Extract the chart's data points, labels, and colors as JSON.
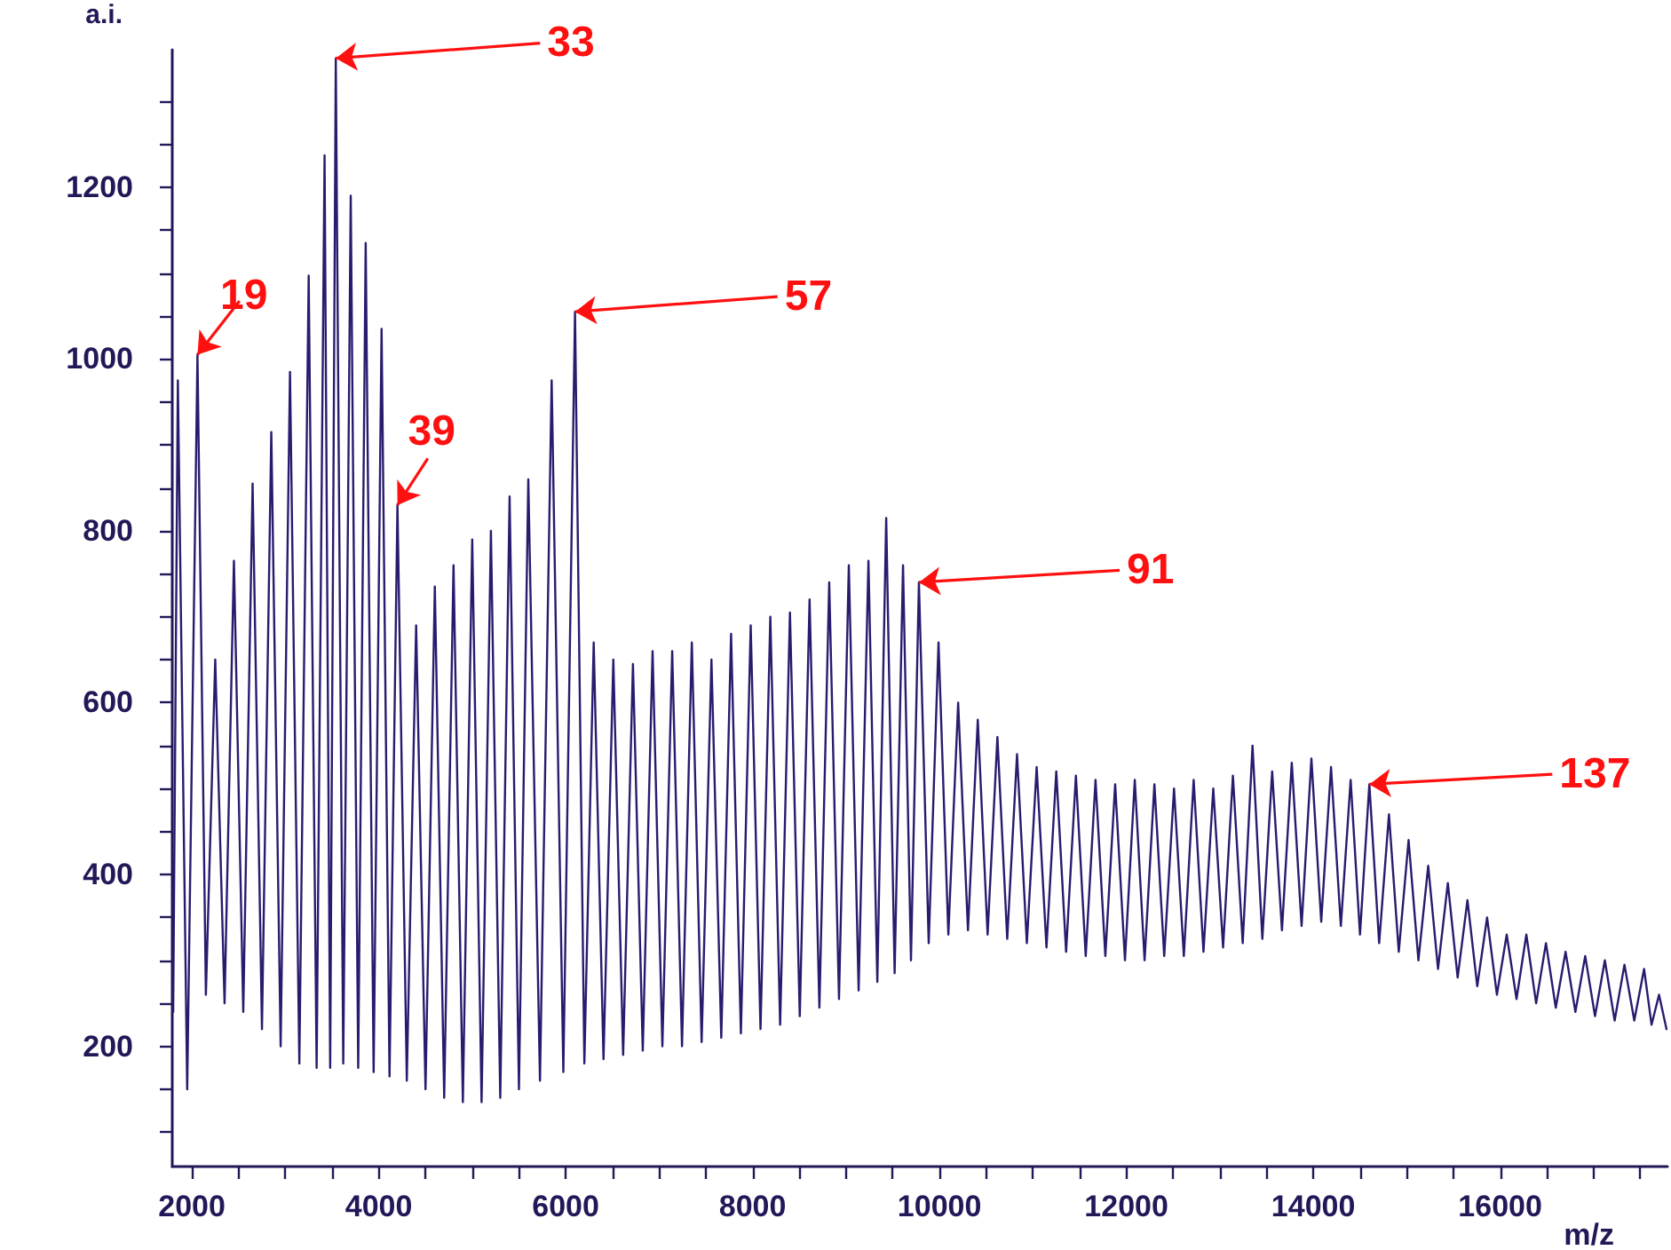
{
  "chart_data": {
    "type": "line",
    "xlabel": "m/z",
    "ylabel": "a.i.",
    "xlim": [
      1790,
      17790
    ],
    "ylim": [
      60,
      1360
    ],
    "xticks": [
      2000,
      {
        "value": 2500,
        "label": null
      },
      {
        "value": 3000,
        "label": null
      },
      {
        "value": 3500,
        "label": null
      },
      4000,
      {
        "value": 4500,
        "label": null
      },
      {
        "value": 5000,
        "label": null
      },
      {
        "value": 5500,
        "label": null
      },
      6000,
      {
        "value": 6500,
        "label": null
      },
      {
        "value": 7000,
        "label": null
      },
      {
        "value": 7500,
        "label": null
      },
      8000,
      {
        "value": 8500,
        "label": null
      },
      {
        "value": 9000,
        "label": null
      },
      {
        "value": 9500,
        "label": null
      },
      10000,
      {
        "value": 10500,
        "label": null
      },
      {
        "value": 11000,
        "label": null
      },
      {
        "value": 11500,
        "label": null
      },
      12000,
      {
        "value": 12500,
        "label": null
      },
      {
        "value": 13000,
        "label": null
      },
      {
        "value": 13500,
        "label": null
      },
      14000,
      {
        "value": 14500,
        "label": null
      },
      {
        "value": 15000,
        "label": null
      },
      {
        "value": 15500,
        "label": null
      },
      16000,
      {
        "value": 16500,
        "label": null
      },
      {
        "value": 17000,
        "label": null
      },
      {
        "value": 17500,
        "label": null
      }
    ],
    "yticks": [
      {
        "value": 100,
        "label": null
      },
      {
        "value": 150,
        "label": null
      },
      200,
      {
        "value": 250,
        "label": null
      },
      {
        "value": 300,
        "label": null
      },
      {
        "value": 350,
        "label": null
      },
      400,
      {
        "value": 450,
        "label": null
      },
      {
        "value": 500,
        "label": null
      },
      {
        "value": 550,
        "label": null
      },
      600,
      {
        "value": 650,
        "label": null
      },
      {
        "value": 700,
        "label": null
      },
      {
        "value": 750,
        "label": null
      },
      800,
      {
        "value": 850,
        "label": null
      },
      {
        "value": 900,
        "label": null
      },
      {
        "value": 950,
        "label": null
      },
      1000,
      {
        "value": 1050,
        "label": null
      },
      {
        "value": 1100,
        "label": null
      },
      {
        "value": 1150,
        "label": null
      },
      1200,
      {
        "value": 1250,
        "label": null
      },
      {
        "value": 1300,
        "label": null
      }
    ],
    "grid": false,
    "marker": "none",
    "line_style": "solid",
    "annotations": [
      {
        "text": "19",
        "x": 2060,
        "y": 1005
      },
      {
        "text": "33",
        "x": 3540,
        "y": 1350
      },
      {
        "text": "39",
        "x": 4200,
        "y": 830
      },
      {
        "text": "57",
        "x": 6100,
        "y": 1055
      },
      {
        "text": "91",
        "x": 9780,
        "y": 740
      },
      {
        "text": "137",
        "x": 14600,
        "y": 505
      }
    ],
    "series": [
      {
        "color": "#2b1a6e",
        "x": [
          1800,
          1850,
          1950,
          2060,
          2150,
          2250,
          2350,
          2450,
          2550,
          2650,
          2750,
          2850,
          2950,
          3050,
          3150,
          3250,
          3335,
          3420,
          3480,
          3540,
          3620,
          3700,
          3780,
          3860,
          3945,
          4030,
          4115,
          4200,
          4300,
          4400,
          4500,
          4600,
          4700,
          4800,
          4900,
          5000,
          5100,
          5200,
          5300,
          5400,
          5500,
          5600,
          5725,
          5850,
          5975,
          6100,
          6200,
          6300,
          6405,
          6510,
          6615,
          6720,
          6825,
          6930,
          7035,
          7140,
          7245,
          7350,
          7455,
          7560,
          7665,
          7770,
          7875,
          7980,
          8085,
          8190,
          8295,
          8400,
          8505,
          8610,
          8715,
          8820,
          8925,
          9030,
          9135,
          9240,
          9335,
          9430,
          9520,
          9610,
          9695,
          9780,
          9885,
          9990,
          10095,
          10200,
          10305,
          10410,
          10515,
          10620,
          10725,
          10830,
          10935,
          11040,
          11145,
          11250,
          11355,
          11460,
          11565,
          11670,
          11775,
          11880,
          11985,
          12090,
          12195,
          12300,
          12405,
          12510,
          12615,
          12720,
          12825,
          12930,
          13035,
          13140,
          13245,
          13350,
          13455,
          13560,
          13665,
          13770,
          13875,
          13980,
          14085,
          14190,
          14295,
          14400,
          14500,
          14600,
          14705,
          14810,
          14915,
          15020,
          15125,
          15230,
          15335,
          15440,
          15545,
          15650,
          15755,
          15860,
          15965,
          16070,
          16175,
          16280,
          16385,
          16490,
          16595,
          16700,
          16805,
          16910,
          17015,
          17120,
          17225,
          17330,
          17435,
          17540,
          17620,
          17700,
          17780
        ],
        "values": [
          240,
          975,
          150,
          1005,
          260,
          650,
          250,
          765,
          240,
          855,
          220,
          915,
          200,
          985,
          180,
          1097,
          175,
          1237,
          175,
          1350,
          180,
          1190,
          175,
          1135,
          170,
          1035,
          165,
          830,
          160,
          690,
          150,
          735,
          140,
          760,
          135,
          790,
          135,
          800,
          140,
          840,
          150,
          860,
          160,
          975,
          170,
          1055,
          180,
          670,
          185,
          650,
          190,
          645,
          195,
          660,
          200,
          660,
          200,
          670,
          205,
          650,
          210,
          680,
          215,
          690,
          220,
          700,
          225,
          705,
          235,
          720,
          245,
          740,
          255,
          760,
          265,
          765,
          275,
          815,
          285,
          760,
          300,
          740,
          320,
          670,
          330,
          600,
          335,
          580,
          330,
          560,
          325,
          540,
          320,
          525,
          315,
          520,
          310,
          515,
          305,
          510,
          305,
          505,
          300,
          510,
          300,
          505,
          305,
          500,
          305,
          510,
          310,
          500,
          315,
          515,
          320,
          550,
          325,
          520,
          335,
          530,
          340,
          535,
          345,
          525,
          340,
          510,
          330,
          505,
          320,
          470,
          310,
          440,
          300,
          410,
          290,
          390,
          280,
          370,
          270,
          350,
          260,
          330,
          255,
          330,
          250,
          320,
          245,
          310,
          240,
          305,
          235,
          300,
          230,
          295,
          230,
          290,
          225,
          260,
          220
        ]
      }
    ]
  }
}
